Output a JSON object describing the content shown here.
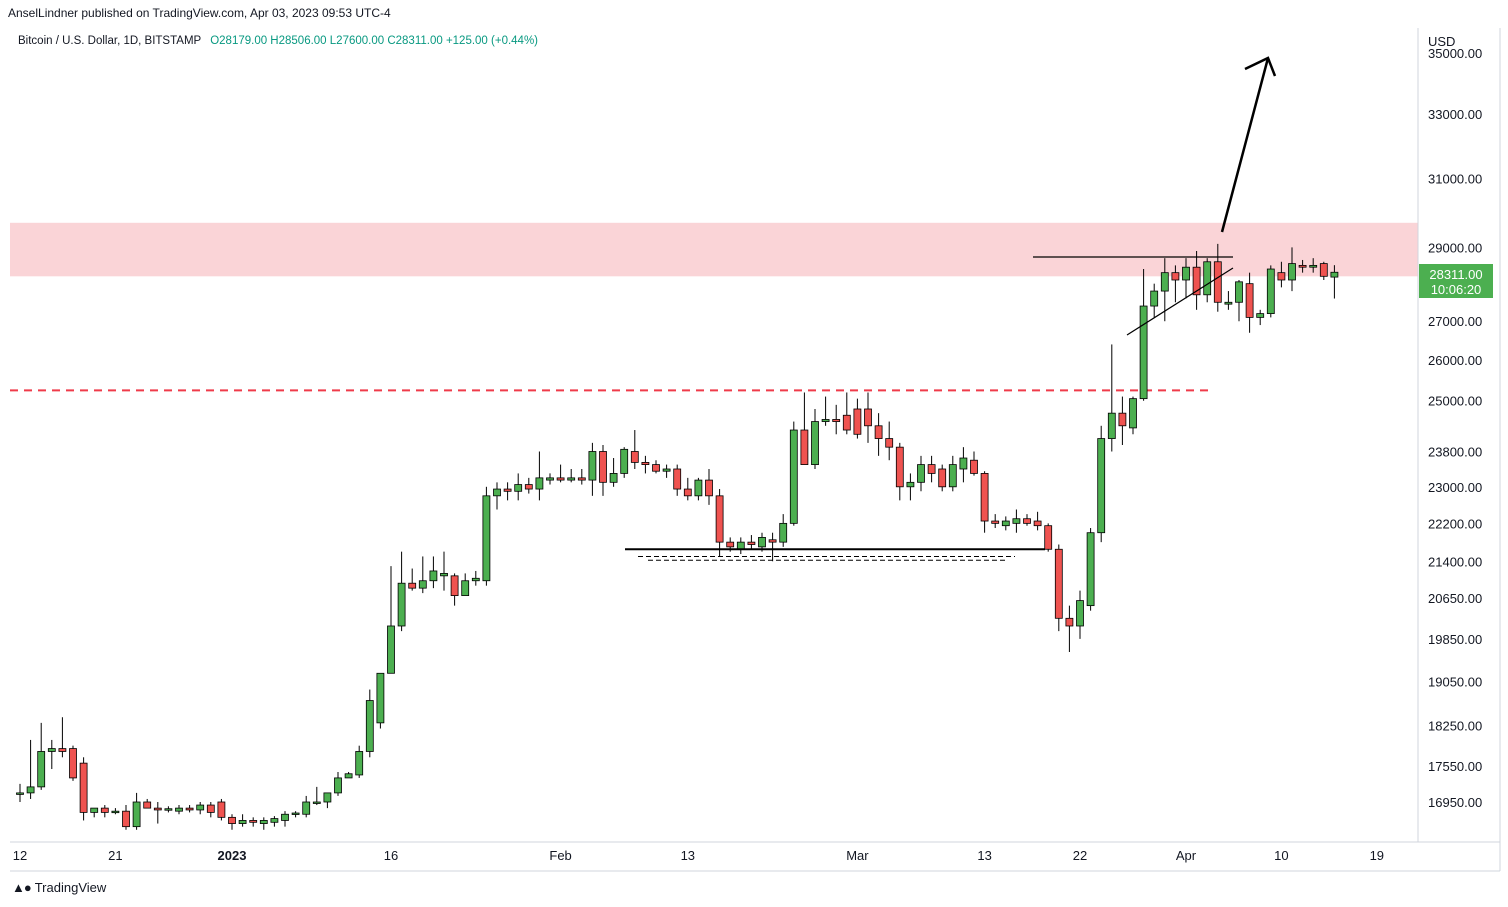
{
  "header": {
    "publisher": "AnselLindner published on TradingView.com, Apr 03, 2023 09:53 UTC-4"
  },
  "symbol": {
    "name": "Bitcoin / U.S. Dollar, 1D, BITSTAMP",
    "ohlc": "O28179.00  H28506.00  L27600.00  C28311.00  +125.00 (+0.44%)"
  },
  "price_axis": {
    "currency": "USD",
    "last_price": "28311.00",
    "countdown": "10:06:20",
    "ticks": [
      "35000.00",
      "33000.00",
      "31000.00",
      "29000.00",
      "28311.00",
      "27000.00",
      "26000.00",
      "25000.00",
      "23800.00",
      "23000.00",
      "22200.00",
      "21400.00",
      "20650.00",
      "19850.00",
      "19050.00",
      "18250.00",
      "17550.00",
      "16950.00"
    ]
  },
  "time_axis": {
    "ticks": [
      "12",
      "21",
      "2023",
      "16",
      "Feb",
      "13",
      "Mar",
      "13",
      "22",
      "Apr",
      "10",
      "19"
    ]
  },
  "footer": {
    "brand": "TradingView"
  },
  "colors": {
    "up": "#4caf50",
    "down": "#ef5350",
    "zone": "#fad4d7",
    "dashed_line": "#ef3b4a",
    "price_label_bg": "#4caf50"
  },
  "chart_data": {
    "type": "candlestick",
    "x_axis": "date",
    "y_axis": "price (USD)",
    "scale": "log",
    "ylim": [
      16500,
      35000
    ],
    "candles": [
      {
        "date": "2022-12-12",
        "o": 17100,
        "h": 17250,
        "l": 16950,
        "c": 17100
      },
      {
        "date": "2022-12-13",
        "o": 17100,
        "h": 18000,
        "l": 17000,
        "c": 17200
      },
      {
        "date": "2022-12-14",
        "o": 17200,
        "h": 18300,
        "l": 17150,
        "c": 17800
      },
      {
        "date": "2022-12-15",
        "o": 17800,
        "h": 18000,
        "l": 17500,
        "c": 17850
      },
      {
        "date": "2022-12-16",
        "o": 17850,
        "h": 18400,
        "l": 17700,
        "c": 17800
      },
      {
        "date": "2022-12-17",
        "o": 17850,
        "h": 17900,
        "l": 17300,
        "c": 17350
      },
      {
        "date": "2022-12-18",
        "o": 17600,
        "h": 17700,
        "l": 16650,
        "c": 16780
      },
      {
        "date": "2022-12-19",
        "o": 16780,
        "h": 16850,
        "l": 16700,
        "c": 16850
      },
      {
        "date": "2022-12-20",
        "o": 16850,
        "h": 16900,
        "l": 16700,
        "c": 16780
      },
      {
        "date": "2022-12-21",
        "o": 16800,
        "h": 16850,
        "l": 16750,
        "c": 16800
      },
      {
        "date": "2022-12-22",
        "o": 16800,
        "h": 16900,
        "l": 16500,
        "c": 16550
      },
      {
        "date": "2022-12-23",
        "o": 16550,
        "h": 17100,
        "l": 16500,
        "c": 16950
      },
      {
        "date": "2022-12-24",
        "o": 16950,
        "h": 17000,
        "l": 16850,
        "c": 16850
      },
      {
        "date": "2022-12-25",
        "o": 16850,
        "h": 16950,
        "l": 16600,
        "c": 16820
      },
      {
        "date": "2022-12-26",
        "o": 16820,
        "h": 16880,
        "l": 16780,
        "c": 16840
      },
      {
        "date": "2022-12-27",
        "o": 16800,
        "h": 16900,
        "l": 16750,
        "c": 16850
      },
      {
        "date": "2022-12-28",
        "o": 16850,
        "h": 16900,
        "l": 16780,
        "c": 16820
      },
      {
        "date": "2022-12-29",
        "o": 16820,
        "h": 16950,
        "l": 16750,
        "c": 16900
      },
      {
        "date": "2022-12-30",
        "o": 16900,
        "h": 16950,
        "l": 16700,
        "c": 16780
      },
      {
        "date": "2022-12-31",
        "o": 16950,
        "h": 17000,
        "l": 16650,
        "c": 16700
      },
      {
        "date": "2023-01-01",
        "o": 16700,
        "h": 16750,
        "l": 16500,
        "c": 16600
      },
      {
        "date": "2023-01-02",
        "o": 16600,
        "h": 16750,
        "l": 16550,
        "c": 16650
      },
      {
        "date": "2023-01-03",
        "o": 16650,
        "h": 16700,
        "l": 16550,
        "c": 16620
      },
      {
        "date": "2023-01-04",
        "o": 16600,
        "h": 16700,
        "l": 16500,
        "c": 16650
      },
      {
        "date": "2023-01-05",
        "o": 16620,
        "h": 16720,
        "l": 16550,
        "c": 16680
      },
      {
        "date": "2023-01-06",
        "o": 16650,
        "h": 16800,
        "l": 16550,
        "c": 16750
      },
      {
        "date": "2023-01-07",
        "o": 16750,
        "h": 16800,
        "l": 16700,
        "c": 16770
      },
      {
        "date": "2023-01-08",
        "o": 16750,
        "h": 17050,
        "l": 16700,
        "c": 16950
      },
      {
        "date": "2023-01-09",
        "o": 16950,
        "h": 17200,
        "l": 16900,
        "c": 16950
      },
      {
        "date": "2023-01-10",
        "o": 16950,
        "h": 17100,
        "l": 16850,
        "c": 17100
      },
      {
        "date": "2023-01-11",
        "o": 17100,
        "h": 17450,
        "l": 17050,
        "c": 17350
      },
      {
        "date": "2023-01-12",
        "o": 17350,
        "h": 17450,
        "l": 17350,
        "c": 17420
      },
      {
        "date": "2023-01-13",
        "o": 17400,
        "h": 17900,
        "l": 17350,
        "c": 17800
      },
      {
        "date": "2023-01-14",
        "o": 17800,
        "h": 18900,
        "l": 17700,
        "c": 18700
      },
      {
        "date": "2023-01-15",
        "o": 18300,
        "h": 19100,
        "l": 18200,
        "c": 19200
      },
      {
        "date": "2023-01-16",
        "o": 19200,
        "h": 21300,
        "l": 19200,
        "c": 20100
      },
      {
        "date": "2023-01-17",
        "o": 20100,
        "h": 21600,
        "l": 20000,
        "c": 20950
      },
      {
        "date": "2023-01-18",
        "o": 20950,
        "h": 21250,
        "l": 20800,
        "c": 20850
      },
      {
        "date": "2023-01-19",
        "o": 20850,
        "h": 21500,
        "l": 20750,
        "c": 21000
      },
      {
        "date": "2023-01-20",
        "o": 21000,
        "h": 21500,
        "l": 20850,
        "c": 21200
      },
      {
        "date": "2023-01-21",
        "o": 21100,
        "h": 21600,
        "l": 20800,
        "c": 21150
      },
      {
        "date": "2023-01-22",
        "o": 21100,
        "h": 21150,
        "l": 20500,
        "c": 20700
      },
      {
        "date": "2023-01-23",
        "o": 20700,
        "h": 21150,
        "l": 20700,
        "c": 21000
      },
      {
        "date": "2023-01-24",
        "o": 21000,
        "h": 21200,
        "l": 20900,
        "c": 21050
      },
      {
        "date": "2023-01-25",
        "o": 21000,
        "h": 23000,
        "l": 20900,
        "c": 22800
      },
      {
        "date": "2023-01-26",
        "o": 22800,
        "h": 23100,
        "l": 22500,
        "c": 22950
      },
      {
        "date": "2023-01-27",
        "o": 22950,
        "h": 23100,
        "l": 22700,
        "c": 22900
      },
      {
        "date": "2023-01-28",
        "o": 22900,
        "h": 23300,
        "l": 22700,
        "c": 23050
      },
      {
        "date": "2023-01-29",
        "o": 23050,
        "h": 23200,
        "l": 22850,
        "c": 22950
      },
      {
        "date": "2023-01-30",
        "o": 22950,
        "h": 23800,
        "l": 22700,
        "c": 23200
      },
      {
        "date": "2023-01-31",
        "o": 23150,
        "h": 23300,
        "l": 23050,
        "c": 23200
      },
      {
        "date": "2023-02-01",
        "o": 23200,
        "h": 23500,
        "l": 23100,
        "c": 23150
      },
      {
        "date": "2023-02-02",
        "o": 23150,
        "h": 23400,
        "l": 23100,
        "c": 23200
      },
      {
        "date": "2023-02-03",
        "o": 23200,
        "h": 23400,
        "l": 23050,
        "c": 23150
      },
      {
        "date": "2023-02-04",
        "o": 23150,
        "h": 24000,
        "l": 22800,
        "c": 23800
      },
      {
        "date": "2023-02-05",
        "o": 23800,
        "h": 23950,
        "l": 22800,
        "c": 23100
      },
      {
        "date": "2023-02-06",
        "o": 23100,
        "h": 23650,
        "l": 23000,
        "c": 23300
      },
      {
        "date": "2023-02-07",
        "o": 23300,
        "h": 23900,
        "l": 23200,
        "c": 23850
      },
      {
        "date": "2023-02-08",
        "o": 23800,
        "h": 24300,
        "l": 23400,
        "c": 23550
      },
      {
        "date": "2023-02-09",
        "o": 23550,
        "h": 23700,
        "l": 23300,
        "c": 23500
      },
      {
        "date": "2023-02-10",
        "o": 23500,
        "h": 23600,
        "l": 23300,
        "c": 23350
      },
      {
        "date": "2023-02-11",
        "o": 23350,
        "h": 23500,
        "l": 23200,
        "c": 23400
      },
      {
        "date": "2023-02-12",
        "o": 23400,
        "h": 23500,
        "l": 22800,
        "c": 22950
      },
      {
        "date": "2023-02-13",
        "o": 22950,
        "h": 23200,
        "l": 22700,
        "c": 22800
      },
      {
        "date": "2023-02-14",
        "o": 22800,
        "h": 23200,
        "l": 22700,
        "c": 23150
      },
      {
        "date": "2023-02-15",
        "o": 23150,
        "h": 23400,
        "l": 22600,
        "c": 22800
      },
      {
        "date": "2023-02-16",
        "o": 22800,
        "h": 22950,
        "l": 21500,
        "c": 21800
      },
      {
        "date": "2023-02-17",
        "o": 21800,
        "h": 21900,
        "l": 21600,
        "c": 21700
      },
      {
        "date": "2023-02-18",
        "o": 21650,
        "h": 21900,
        "l": 21550,
        "c": 21800
      },
      {
        "date": "2023-02-19",
        "o": 21800,
        "h": 21950,
        "l": 21650,
        "c": 21750
      },
      {
        "date": "2023-02-20",
        "o": 21700,
        "h": 22000,
        "l": 21600,
        "c": 21900
      },
      {
        "date": "2023-02-21",
        "o": 21850,
        "h": 22000,
        "l": 21400,
        "c": 21800
      },
      {
        "date": "2023-02-22",
        "o": 21800,
        "h": 22400,
        "l": 21700,
        "c": 22200
      },
      {
        "date": "2023-02-23",
        "o": 22200,
        "h": 24500,
        "l": 22150,
        "c": 24300
      },
      {
        "date": "2023-02-24",
        "o": 24300,
        "h": 25200,
        "l": 23500,
        "c": 23500
      },
      {
        "date": "2023-02-25",
        "o": 23500,
        "h": 24800,
        "l": 23400,
        "c": 24500
      },
      {
        "date": "2023-02-26",
        "o": 24500,
        "h": 25100,
        "l": 24400,
        "c": 24550
      },
      {
        "date": "2023-02-27",
        "o": 24550,
        "h": 24900,
        "l": 24200,
        "c": 24500
      },
      {
        "date": "2023-02-28",
        "o": 24650,
        "h": 25200,
        "l": 24200,
        "c": 24300
      },
      {
        "date": "2023-03-01",
        "o": 24800,
        "h": 25050,
        "l": 24100,
        "c": 24200
      },
      {
        "date": "2023-03-02",
        "o": 24800,
        "h": 25200,
        "l": 24000,
        "c": 24400
      },
      {
        "date": "2023-03-03",
        "o": 24400,
        "h": 24700,
        "l": 23700,
        "c": 24100
      },
      {
        "date": "2023-03-04",
        "o": 24100,
        "h": 24500,
        "l": 23600,
        "c": 23900
      },
      {
        "date": "2023-03-05",
        "o": 23900,
        "h": 24000,
        "l": 22700,
        "c": 23000
      },
      {
        "date": "2023-03-06",
        "o": 23000,
        "h": 23300,
        "l": 22700,
        "c": 23100
      },
      {
        "date": "2023-03-07",
        "o": 23100,
        "h": 23700,
        "l": 22900,
        "c": 23500
      },
      {
        "date": "2023-03-08",
        "o": 23500,
        "h": 23700,
        "l": 23100,
        "c": 23300
      },
      {
        "date": "2023-03-09",
        "o": 23400,
        "h": 23500,
        "l": 22900,
        "c": 23000
      },
      {
        "date": "2023-03-10",
        "o": 23000,
        "h": 23700,
        "l": 22900,
        "c": 23500
      },
      {
        "date": "2023-03-11",
        "o": 23400,
        "h": 23900,
        "l": 23100,
        "c": 23650
      },
      {
        "date": "2023-03-12",
        "o": 23600,
        "h": 23800,
        "l": 23250,
        "c": 23300
      },
      {
        "date": "2023-03-13",
        "o": 23300,
        "h": 23350,
        "l": 22000,
        "c": 22250
      },
      {
        "date": "2023-03-14",
        "o": 22250,
        "h": 22400,
        "l": 22100,
        "c": 22200
      },
      {
        "date": "2023-03-15",
        "o": 22150,
        "h": 22350,
        "l": 22050,
        "c": 22250
      },
      {
        "date": "2023-03-16",
        "o": 22200,
        "h": 22500,
        "l": 22000,
        "c": 22300
      },
      {
        "date": "2023-03-17",
        "o": 22300,
        "h": 22400,
        "l": 22150,
        "c": 22200
      },
      {
        "date": "2023-03-18",
        "o": 22250,
        "h": 22450,
        "l": 22050,
        "c": 22150
      },
      {
        "date": "2023-03-19",
        "o": 22150,
        "h": 22200,
        "l": 21600,
        "c": 21650
      },
      {
        "date": "2023-03-20",
        "o": 21650,
        "h": 21750,
        "l": 20000,
        "c": 20250
      },
      {
        "date": "2023-03-21",
        "o": 20250,
        "h": 20500,
        "l": 19600,
        "c": 20100
      },
      {
        "date": "2023-03-22",
        "o": 20100,
        "h": 20800,
        "l": 19850,
        "c": 20600
      },
      {
        "date": "2023-03-23",
        "o": 20500,
        "h": 22100,
        "l": 20400,
        "c": 22000
      },
      {
        "date": "2023-03-24",
        "o": 22000,
        "h": 24400,
        "l": 21800,
        "c": 24100
      },
      {
        "date": "2023-03-25",
        "o": 24100,
        "h": 26400,
        "l": 23800,
        "c": 24700
      },
      {
        "date": "2023-03-26",
        "o": 24700,
        "h": 25100,
        "l": 23950,
        "c": 24400
      },
      {
        "date": "2023-03-27",
        "o": 24350,
        "h": 25100,
        "l": 24200,
        "c": 25050
      },
      {
        "date": "2023-03-28",
        "o": 25050,
        "h": 28400,
        "l": 25000,
        "c": 27400
      },
      {
        "date": "2023-03-29",
        "o": 27400,
        "h": 28000,
        "l": 27100,
        "c": 27800
      },
      {
        "date": "2023-03-30",
        "o": 27800,
        "h": 28700,
        "l": 27000,
        "c": 28300
      },
      {
        "date": "2023-03-31",
        "o": 28300,
        "h": 28500,
        "l": 27500,
        "c": 28100
      },
      {
        "date": "2023-04-01",
        "o": 28100,
        "h": 28700,
        "l": 27600,
        "c": 28450
      },
      {
        "date": "2023-04-02",
        "o": 28450,
        "h": 28900,
        "l": 27300,
        "c": 27700
      },
      {
        "date": "2023-04-03",
        "o": 27700,
        "h": 28700,
        "l": 27500,
        "c": 28600
      },
      {
        "date": "2023-04-04",
        "o": 28600,
        "h": 29100,
        "l": 27250,
        "c": 27500
      },
      {
        "date": "2023-04-05",
        "o": 27450,
        "h": 27800,
        "l": 27300,
        "c": 27500
      },
      {
        "date": "2023-04-06",
        "o": 27500,
        "h": 28100,
        "l": 27000,
        "c": 28050
      },
      {
        "date": "2023-04-07",
        "o": 28000,
        "h": 28300,
        "l": 26700,
        "c": 27100
      },
      {
        "date": "2023-04-08",
        "o": 27100,
        "h": 27300,
        "l": 26900,
        "c": 27200
      },
      {
        "date": "2023-04-09",
        "o": 27200,
        "h": 28500,
        "l": 27100,
        "c": 28400
      },
      {
        "date": "2023-04-10",
        "o": 28300,
        "h": 28600,
        "l": 27900,
        "c": 28100
      },
      {
        "date": "2023-04-11",
        "o": 28100,
        "h": 29000,
        "l": 27800,
        "c": 28550
      },
      {
        "date": "2023-04-12",
        "o": 28500,
        "h": 28650,
        "l": 28300,
        "c": 28450
      },
      {
        "date": "2023-04-13",
        "o": 28450,
        "h": 28700,
        "l": 28300,
        "c": 28500
      },
      {
        "date": "2023-04-14",
        "o": 28550,
        "h": 28600,
        "l": 28100,
        "c": 28200
      },
      {
        "date": "2023-04-15",
        "o": 28179,
        "h": 28506,
        "l": 27600,
        "c": 28311
      }
    ],
    "annotations": {
      "resistance_zone": [
        28200,
        29700
      ],
      "dashed_level": 25250,
      "support_level": 21650,
      "support_dashed_levels": [
        21500,
        21420
      ]
    }
  }
}
